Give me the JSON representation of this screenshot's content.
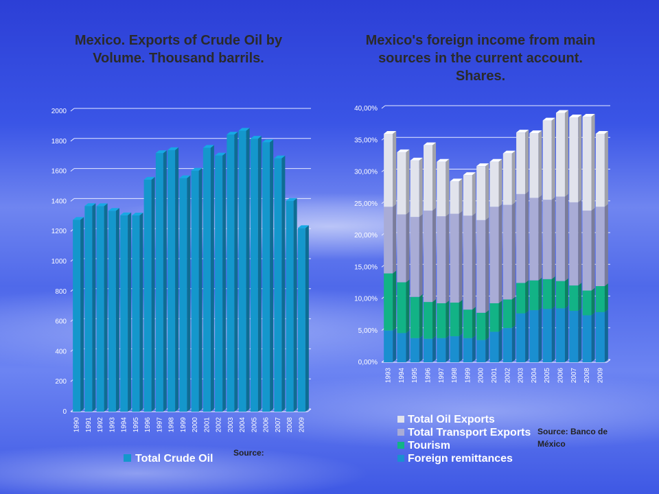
{
  "charts": {
    "left_title": "Mexico. Exports of Crude Oil by Volume. Thousand barrils.",
    "left_source": "Source:",
    "right_title": "Mexico's foreign income from main sources in the current account. Shares.",
    "right_source": "Source: Banco de México"
  },
  "colors": {
    "crude": "#1497cc",
    "remittances": "#1a8fd0",
    "tourism": "#12b386",
    "transport": "#a9acd6",
    "oil": "#e1e3ec"
  },
  "chart_data": [
    {
      "type": "bar",
      "title": "Mexico. Exports of Crude Oil by Volume. Thousand barrils.",
      "categories": [
        "1990",
        "1991",
        "1992",
        "1993",
        "1994",
        "1995",
        "1996",
        "1997",
        "1998",
        "1999",
        "2000",
        "2001",
        "2002",
        "2003",
        "2004",
        "2005",
        "2006",
        "2007",
        "2008",
        "2009"
      ],
      "series": [
        {
          "name": "Total Crude Oil",
          "values": [
            1277,
            1369,
            1368,
            1337,
            1307,
            1306,
            1544,
            1721,
            1741,
            1554,
            1604,
            1756,
            1705,
            1844,
            1870,
            1817,
            1793,
            1686,
            1403,
            1222
          ]
        }
      ],
      "yticks": [
        "0",
        "200",
        "400",
        "600",
        "800",
        "1000",
        "1200",
        "1400",
        "1600",
        "1800",
        "2000"
      ],
      "ylim": [
        0,
        2000
      ],
      "grid": true,
      "legend": "bottom",
      "xlabel": "",
      "ylabel": ""
    },
    {
      "type": "bar",
      "stacked": true,
      "title": "Mexico's foreign income from main sources in the current account. Shares.",
      "categories": [
        "1993",
        "1994",
        "1995",
        "1996",
        "1997",
        "1998",
        "1999",
        "2000",
        "2001",
        "2002",
        "2003",
        "2004",
        "2005",
        "2006",
        "2007",
        "2008",
        "2009"
      ],
      "series": [
        {
          "name": "Foreign remittances",
          "values": [
            5.0,
            4.6,
            3.8,
            3.7,
            3.8,
            4.1,
            3.8,
            3.5,
            4.8,
            5.4,
            7.7,
            8.2,
            8.4,
            8.5,
            8.1,
            7.4,
            7.9
          ]
        },
        {
          "name": "Tourism",
          "values": [
            9.0,
            8.0,
            6.5,
            5.8,
            5.5,
            5.3,
            4.5,
            4.3,
            4.5,
            4.5,
            4.8,
            4.7,
            4.7,
            4.3,
            4.0,
            3.9,
            4.1
          ]
        },
        {
          "name": "Total Transport Exports",
          "values": [
            10.5,
            10.7,
            12.6,
            14.4,
            13.7,
            14.0,
            14.8,
            14.6,
            15.2,
            14.9,
            14.0,
            13.0,
            12.5,
            13.3,
            13.1,
            12.6,
            12.5
          ]
        },
        {
          "name": "Total Oil Exports",
          "values": [
            11.5,
            9.8,
            8.9,
            10.3,
            8.6,
            5.1,
            6.4,
            8.5,
            7.1,
            8.1,
            9.7,
            10.2,
            12.5,
            13.2,
            13.4,
            14.8,
            11.5
          ]
        }
      ],
      "yticks": [
        "0,00%",
        "5,00%",
        "10,00%",
        "15,00%",
        "20,00%",
        "25,00%",
        "30,00%",
        "35,00%",
        "40,00%"
      ],
      "ylim": [
        0,
        40
      ],
      "grid": true,
      "legend": "bottom",
      "legend_order": [
        "Total Oil Exports",
        "Total Transport Exports",
        "Tourism",
        "Foreign remittances"
      ],
      "xlabel": "",
      "ylabel": ""
    }
  ]
}
